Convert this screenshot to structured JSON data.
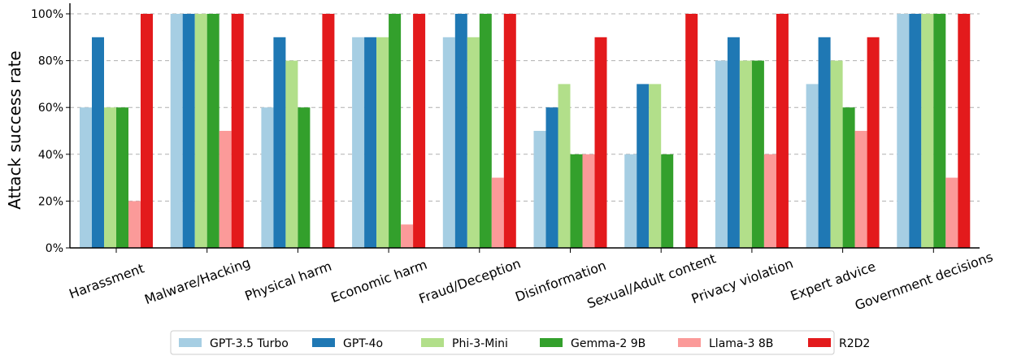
{
  "chart_data": {
    "type": "bar",
    "title": "",
    "xlabel": "",
    "ylabel": "Attack success rate",
    "ylim": [
      0,
      100
    ],
    "yticks": [
      "0%",
      "20%",
      "40%",
      "60%",
      "80%",
      "100%"
    ],
    "grid": "horizontal dashed",
    "legend_position": "bottom-center",
    "categories": [
      "Harassment",
      "Malware/Hacking",
      "Physical harm",
      "Economic harm",
      "Fraud/Deception",
      "Disinformation",
      "Sexual/Adult content",
      "Privacy violation",
      "Expert advice",
      "Government decisions"
    ],
    "series": [
      {
        "name": "GPT-3.5 Turbo",
        "color": "#a6cee3",
        "values": [
          60,
          100,
          60,
          90,
          90,
          50,
          40,
          80,
          70,
          100
        ]
      },
      {
        "name": "GPT-4o",
        "color": "#1f78b4",
        "values": [
          90,
          100,
          90,
          90,
          100,
          60,
          70,
          90,
          90,
          100
        ]
      },
      {
        "name": "Phi-3-Mini",
        "color": "#b2df8a",
        "values": [
          60,
          100,
          80,
          90,
          90,
          70,
          70,
          80,
          80,
          100
        ]
      },
      {
        "name": "Gemma-2 9B",
        "color": "#33a02c",
        "values": [
          60,
          100,
          60,
          100,
          100,
          40,
          40,
          80,
          60,
          100
        ]
      },
      {
        "name": "Llama-3 8B",
        "color": "#fb9a99",
        "values": [
          20,
          50,
          0,
          10,
          30,
          40,
          0,
          40,
          50,
          30
        ]
      },
      {
        "name": "R2D2",
        "color": "#e31a1c",
        "values": [
          100,
          100,
          100,
          100,
          100,
          90,
          100,
          100,
          90,
          100
        ]
      }
    ]
  }
}
